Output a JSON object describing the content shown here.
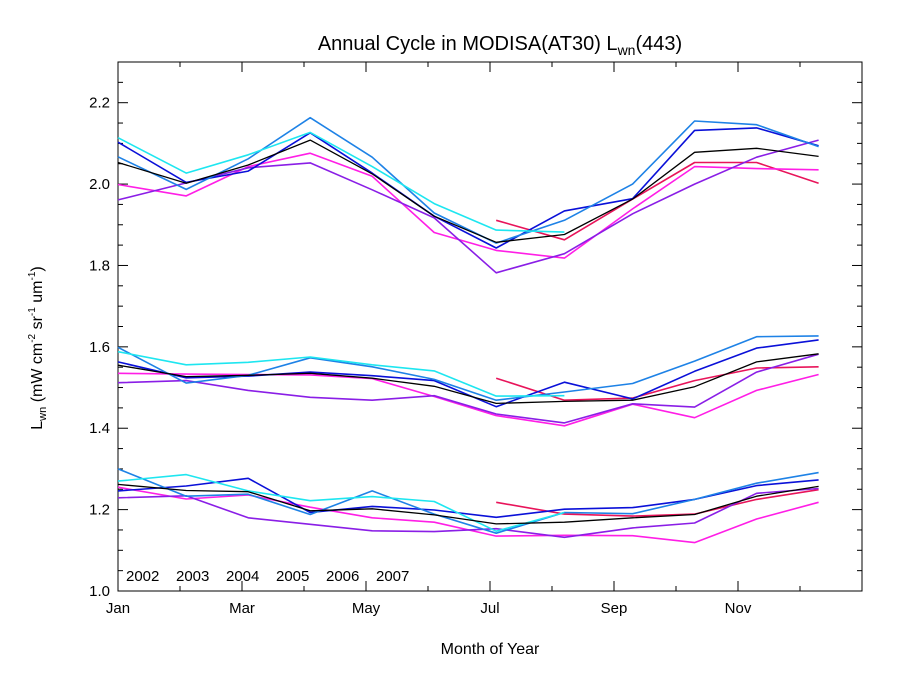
{
  "chart_data": {
    "type": "line",
    "title": {
      "prefix": "Annual Cycle in MODISA(AT30) L",
      "subscript": "wn",
      "suffix": "(443)"
    },
    "xlabel": "Month of Year",
    "ylabel": {
      "base": "L",
      "base_sub": "wn",
      "units_a": " (mW cm",
      "sup1": "-2",
      "units_b": " sr",
      "sup2": "-1",
      "units_c": " um",
      "sup3": "-1",
      "units_d": ")"
    },
    "xlim": [
      1,
      13
    ],
    "ylim": [
      1.0,
      2.3
    ],
    "xticks": [
      {
        "value": 1,
        "label": "Jan"
      },
      {
        "value": 3,
        "label": "Mar"
      },
      {
        "value": 5,
        "label": "May"
      },
      {
        "value": 7,
        "label": "Jul"
      },
      {
        "value": 9,
        "label": "Sep"
      },
      {
        "value": 11,
        "label": "Nov"
      }
    ],
    "yticks": [
      {
        "value": 1.0,
        "label": "1.0"
      },
      {
        "value": 1.2,
        "label": "1.2"
      },
      {
        "value": 1.4,
        "label": "1.4"
      },
      {
        "value": 1.6,
        "label": "1.6"
      },
      {
        "value": 1.8,
        "label": "1.8"
      },
      {
        "value": 2.0,
        "label": "2.0"
      },
      {
        "value": 2.2,
        "label": "2.2"
      }
    ],
    "legend_placement": "bottom-left",
    "series": [
      {
        "name": "2002",
        "color": "#e8145a",
        "in_legend": true,
        "groups": [
          [
            [
              7.1,
              1.911
            ],
            [
              8.2,
              1.863
            ],
            [
              9.3,
              1.963
            ],
            [
              10.3,
              2.053
            ],
            [
              11.3,
              2.053
            ],
            [
              12.3,
              2.002
            ]
          ],
          [
            [
              7.1,
              1.523
            ],
            [
              8.2,
              1.469
            ],
            [
              9.3,
              1.474
            ],
            [
              10.3,
              1.517
            ],
            [
              11.3,
              1.548
            ],
            [
              12.3,
              1.551
            ]
          ],
          [
            [
              7.1,
              1.218
            ],
            [
              8.2,
              1.189
            ],
            [
              9.3,
              1.184
            ],
            [
              10.3,
              1.189
            ],
            [
              11.3,
              1.225
            ],
            [
              12.3,
              1.249
            ]
          ]
        ]
      },
      {
        "name": "2003",
        "color": "#ff1ee6",
        "in_legend": true,
        "groups": [
          [
            [
              1.0,
              1.999
            ],
            [
              2.1,
              1.971
            ],
            [
              3.1,
              2.043
            ],
            [
              4.1,
              2.076
            ],
            [
              5.1,
              2.019
            ],
            [
              6.1,
              1.881
            ],
            [
              7.1,
              1.837
            ],
            [
              8.2,
              1.818
            ],
            [
              9.3,
              1.939
            ],
            [
              10.3,
              2.043
            ],
            [
              11.3,
              2.038
            ],
            [
              12.3,
              2.035
            ]
          ],
          [
            [
              1.0,
              1.535
            ],
            [
              2.1,
              1.533
            ],
            [
              3.1,
              1.532
            ],
            [
              4.1,
              1.531
            ],
            [
              5.1,
              1.522
            ],
            [
              6.1,
              1.478
            ],
            [
              7.1,
              1.431
            ],
            [
              8.2,
              1.406
            ],
            [
              9.3,
              1.459
            ],
            [
              10.3,
              1.426
            ],
            [
              11.3,
              1.493
            ],
            [
              12.3,
              1.532
            ]
          ],
          [
            [
              1.0,
              1.255
            ],
            [
              2.1,
              1.226
            ],
            [
              3.1,
              1.236
            ],
            [
              4.1,
              1.206
            ],
            [
              5.1,
              1.18
            ],
            [
              6.1,
              1.169
            ],
            [
              7.1,
              1.135
            ],
            [
              8.2,
              1.137
            ],
            [
              9.3,
              1.136
            ],
            [
              10.3,
              1.119
            ],
            [
              11.3,
              1.177
            ],
            [
              12.3,
              1.218
            ]
          ]
        ]
      },
      {
        "name": "2004",
        "color": "#8a1ee6",
        "in_legend": true,
        "groups": [
          [
            [
              1.0,
              1.961
            ],
            [
              2.1,
              2.003
            ],
            [
              3.1,
              2.04
            ],
            [
              4.1,
              2.052
            ],
            [
              5.1,
              1.986
            ],
            [
              6.1,
              1.917
            ],
            [
              7.1,
              1.782
            ],
            [
              8.2,
              1.829
            ],
            [
              9.3,
              1.927
            ],
            [
              10.3,
              2.0
            ],
            [
              11.3,
              2.066
            ],
            [
              12.3,
              2.108
            ]
          ],
          [
            [
              1.0,
              1.512
            ],
            [
              2.1,
              1.517
            ],
            [
              3.1,
              1.493
            ],
            [
              4.1,
              1.476
            ],
            [
              5.1,
              1.469
            ],
            [
              6.1,
              1.48
            ],
            [
              7.1,
              1.435
            ],
            [
              8.2,
              1.413
            ],
            [
              9.3,
              1.46
            ],
            [
              10.3,
              1.452
            ],
            [
              11.3,
              1.538
            ],
            [
              12.3,
              1.582
            ]
          ],
          [
            [
              1.0,
              1.229
            ],
            [
              2.1,
              1.234
            ],
            [
              3.1,
              1.18
            ],
            [
              4.1,
              1.164
            ],
            [
              5.1,
              1.148
            ],
            [
              6.1,
              1.146
            ],
            [
              7.1,
              1.153
            ],
            [
              8.2,
              1.132
            ],
            [
              9.3,
              1.155
            ],
            [
              10.3,
              1.167
            ],
            [
              11.3,
              1.24
            ],
            [
              12.3,
              1.252
            ]
          ]
        ]
      },
      {
        "name": "2005",
        "color": "#0a10d8",
        "in_legend": true,
        "groups": [
          [
            [
              1.0,
              2.103
            ],
            [
              2.1,
              2.004
            ],
            [
              3.1,
              2.032
            ],
            [
              4.1,
              2.126
            ],
            [
              5.1,
              2.027
            ],
            [
              6.1,
              1.921
            ],
            [
              7.1,
              1.843
            ],
            [
              8.2,
              1.934
            ],
            [
              9.3,
              1.964
            ],
            [
              10.3,
              2.132
            ],
            [
              11.3,
              2.138
            ],
            [
              12.3,
              2.094
            ]
          ],
          [
            [
              1.0,
              1.563
            ],
            [
              2.1,
              1.524
            ],
            [
              3.1,
              1.528
            ],
            [
              4.1,
              1.538
            ],
            [
              5.1,
              1.529
            ],
            [
              6.1,
              1.517
            ],
            [
              7.1,
              1.453
            ],
            [
              8.2,
              1.513
            ],
            [
              9.3,
              1.472
            ],
            [
              10.3,
              1.54
            ],
            [
              11.3,
              1.597
            ],
            [
              12.3,
              1.617
            ]
          ],
          [
            [
              1.0,
              1.246
            ],
            [
              2.1,
              1.258
            ],
            [
              3.1,
              1.277
            ],
            [
              4.1,
              1.193
            ],
            [
              5.1,
              1.208
            ],
            [
              6.1,
              1.199
            ],
            [
              7.1,
              1.181
            ],
            [
              8.2,
              1.201
            ],
            [
              9.3,
              1.205
            ],
            [
              10.3,
              1.225
            ],
            [
              11.3,
              1.259
            ],
            [
              12.3,
              1.273
            ]
          ]
        ]
      },
      {
        "name": "2006",
        "color": "#1e82e6",
        "in_legend": true,
        "groups": [
          [
            [
              1.0,
              2.067
            ],
            [
              2.1,
              1.987
            ],
            [
              3.1,
              2.062
            ],
            [
              4.1,
              2.163
            ],
            [
              5.1,
              2.066
            ],
            [
              6.1,
              1.929
            ],
            [
              7.1,
              1.855
            ],
            [
              8.2,
              1.911
            ],
            [
              9.3,
              2.0
            ],
            [
              10.3,
              2.155
            ],
            [
              11.3,
              2.146
            ],
            [
              12.3,
              2.092
            ]
          ],
          [
            [
              1.0,
              1.599
            ],
            [
              2.1,
              1.511
            ],
            [
              3.1,
              1.53
            ],
            [
              4.1,
              1.573
            ],
            [
              5.1,
              1.551
            ],
            [
              6.1,
              1.52
            ],
            [
              7.1,
              1.469
            ],
            [
              8.2,
              1.489
            ],
            [
              9.3,
              1.51
            ],
            [
              10.3,
              1.565
            ],
            [
              11.3,
              1.625
            ],
            [
              12.3,
              1.627
            ]
          ],
          [
            [
              1.0,
              1.3
            ],
            [
              2.1,
              1.233
            ],
            [
              3.1,
              1.238
            ],
            [
              4.1,
              1.188
            ],
            [
              5.1,
              1.246
            ],
            [
              6.1,
              1.189
            ],
            [
              7.1,
              1.142
            ],
            [
              8.2,
              1.193
            ],
            [
              9.3,
              1.19
            ],
            [
              10.3,
              1.225
            ],
            [
              11.3,
              1.265
            ],
            [
              12.3,
              1.291
            ]
          ]
        ]
      },
      {
        "name": "2007",
        "color": "#1ee6f0",
        "in_legend": true,
        "groups": [
          [
            [
              1.0,
              2.114
            ],
            [
              2.1,
              2.027
            ],
            [
              3.1,
              2.072
            ],
            [
              4.1,
              2.127
            ],
            [
              5.1,
              2.043
            ],
            [
              6.1,
              1.952
            ],
            [
              7.1,
              1.887
            ],
            [
              8.2,
              1.882
            ]
          ],
          [
            [
              1.0,
              1.588
            ],
            [
              2.1,
              1.556
            ],
            [
              3.1,
              1.562
            ],
            [
              4.1,
              1.575
            ],
            [
              5.1,
              1.556
            ],
            [
              6.1,
              1.541
            ],
            [
              7.1,
              1.479
            ],
            [
              8.2,
              1.48
            ]
          ],
          [
            [
              1.0,
              1.27
            ],
            [
              2.1,
              1.286
            ],
            [
              3.1,
              1.246
            ],
            [
              4.1,
              1.222
            ],
            [
              5.1,
              1.232
            ],
            [
              6.1,
              1.22
            ],
            [
              7.1,
              1.147
            ],
            [
              8.2,
              1.193
            ]
          ]
        ]
      },
      {
        "name": "",
        "color": "#000000",
        "in_legend": false,
        "groups": [
          [
            [
              1.0,
              2.053
            ],
            [
              2.1,
              2.002
            ],
            [
              3.1,
              2.047
            ],
            [
              4.1,
              2.108
            ],
            [
              5.1,
              2.025
            ],
            [
              6.1,
              1.921
            ],
            [
              7.1,
              1.857
            ],
            [
              8.2,
              1.876
            ],
            [
              9.3,
              1.963
            ],
            [
              10.3,
              2.078
            ],
            [
              11.3,
              2.088
            ],
            [
              12.3,
              2.068
            ]
          ],
          [
            [
              1.0,
              1.555
            ],
            [
              2.1,
              1.527
            ],
            [
              3.1,
              1.53
            ],
            [
              4.1,
              1.535
            ],
            [
              5.1,
              1.523
            ],
            [
              6.1,
              1.503
            ],
            [
              7.1,
              1.461
            ],
            [
              8.2,
              1.466
            ],
            [
              9.3,
              1.469
            ],
            [
              10.3,
              1.502
            ],
            [
              11.3,
              1.563
            ],
            [
              12.3,
              1.583
            ]
          ],
          [
            [
              1.0,
              1.262
            ],
            [
              2.1,
              1.247
            ],
            [
              3.1,
              1.244
            ],
            [
              4.1,
              1.197
            ],
            [
              5.1,
              1.202
            ],
            [
              6.1,
              1.187
            ],
            [
              7.1,
              1.165
            ],
            [
              8.2,
              1.169
            ],
            [
              9.3,
              1.18
            ],
            [
              10.3,
              1.188
            ],
            [
              11.3,
              1.233
            ],
            [
              12.3,
              1.257
            ]
          ]
        ]
      }
    ]
  }
}
